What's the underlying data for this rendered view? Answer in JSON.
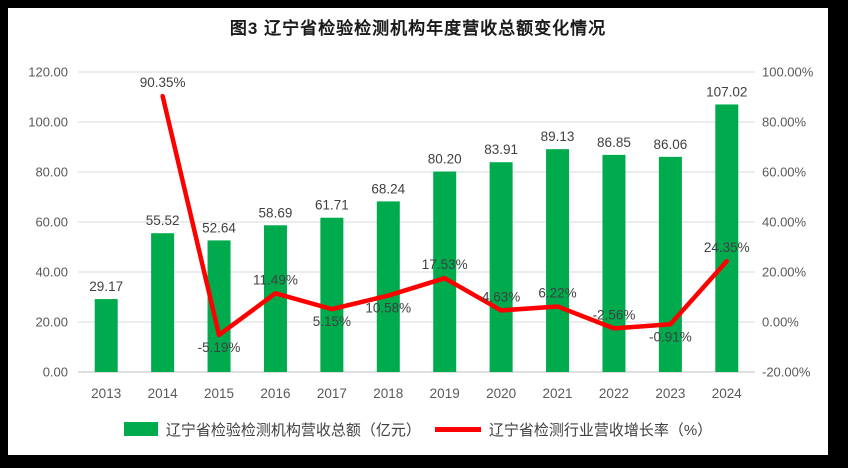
{
  "frame": {
    "border_color": "#000000",
    "background": "#FFFFFF"
  },
  "chart_data": {
    "type": "combo-bar-line",
    "title": "图3 辽宁省检验检测机构年度营收总额变化情况",
    "categories": [
      "2013",
      "2014",
      "2015",
      "2016",
      "2017",
      "2018",
      "2019",
      "2020",
      "2021",
      "2022",
      "2023",
      "2024"
    ],
    "series": [
      {
        "name": "辽宁省检验检测机构营收总额（亿元）",
        "type": "bar",
        "axis": "left",
        "color": "#00AB4E",
        "values": [
          29.17,
          55.52,
          52.64,
          58.69,
          61.71,
          68.24,
          80.2,
          83.91,
          89.13,
          86.85,
          86.06,
          107.02
        ],
        "labels": [
          "29.17",
          "55.52",
          "52.64",
          "58.69",
          "61.71",
          "68.24",
          "80.20",
          "83.91",
          "89.13",
          "86.85",
          "86.06",
          "107.02"
        ]
      },
      {
        "name": "辽宁省检测行业营收增长率（%）",
        "type": "line",
        "axis": "right",
        "color": "#FF0000",
        "values": [
          null,
          90.35,
          -5.19,
          11.49,
          5.15,
          10.58,
          17.53,
          4.63,
          6.22,
          -2.56,
          -0.91,
          24.35
        ],
        "labels": [
          "",
          "90.35%",
          "-5.19%",
          "11.49%",
          "5.15%",
          "10.58%",
          "17.53%",
          "4.63%",
          "6.22%",
          "-2.56%",
          "-0.91%",
          "24.35%"
        ],
        "label_positions": [
          "",
          "above",
          "below",
          "above",
          "below",
          "below",
          "above",
          "above",
          "above",
          "above",
          "below",
          "above"
        ]
      }
    ],
    "left_axis": {
      "min": 0,
      "max": 120,
      "ticks": [
        "120.00",
        "100.00",
        "80.00",
        "60.00",
        "40.00",
        "20.00",
        "0.00"
      ]
    },
    "right_axis": {
      "min": -20,
      "max": 100,
      "ticks": [
        "100.00%",
        "80.00%",
        "60.00%",
        "40.00%",
        "20.00%",
        "0.00%",
        "-20.00%"
      ]
    },
    "grid": true,
    "legend_position": "bottom",
    "colors": {
      "gridline": "#D9D9D9",
      "axis_line": "#BFBFBF",
      "tick_text": "#595959",
      "data_label": "#404040",
      "title_text": "#1A1A1A"
    }
  }
}
